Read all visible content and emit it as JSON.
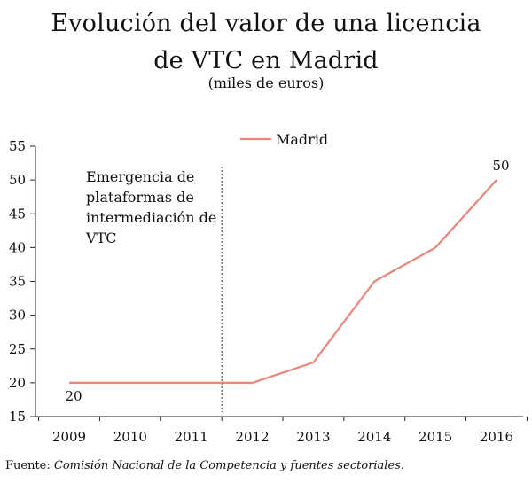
{
  "chart_data": {
    "type": "line",
    "title_line1": "Evolución del valor de una licencia",
    "title_line2": "de VTC en Madrid",
    "subtitle": "(miles de euros)",
    "categories": [
      "2009",
      "2010",
      "2011",
      "2012",
      "2013",
      "2014",
      "2015",
      "2016"
    ],
    "series": [
      {
        "name": "Madrid",
        "values": [
          20,
          20,
          20,
          20,
          23,
          35,
          40,
          50
        ],
        "color": "#e8867b"
      }
    ],
    "yticks": [
      15,
      20,
      25,
      30,
      35,
      40,
      45,
      50,
      55
    ],
    "ylim": [
      15,
      55
    ],
    "data_labels": [
      {
        "category": "2009",
        "text": "20"
      },
      {
        "category": "2016",
        "text": "50"
      }
    ],
    "annotation": {
      "lines": [
        "Emergencia de",
        "plataformas de",
        "intermediación de",
        "VTC"
      ],
      "marker_between": [
        "2011",
        "2012"
      ]
    },
    "legend_position": "top-center",
    "grid": false
  },
  "source": {
    "prefix": "Fuente:",
    "text": "Comisión Nacional de la Competencia y fuentes sectoriales."
  }
}
